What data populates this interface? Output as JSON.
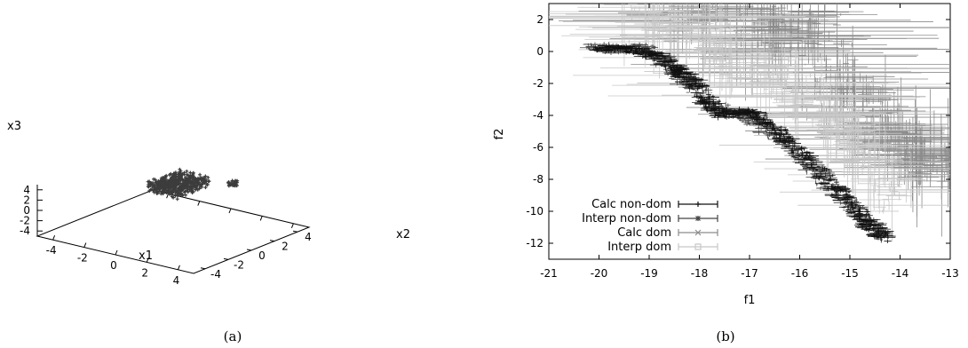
{
  "chart_data": [
    {
      "type": "scatter",
      "panel_caption": "(a)",
      "projection": "3d",
      "xlabel": "x1",
      "ylabel": "x2",
      "zlabel": "x3",
      "xlim": [
        -5,
        5
      ],
      "ylim": [
        -5,
        5
      ],
      "zlim": [
        -5,
        5
      ],
      "x_ticks": [
        "-4",
        "-2",
        "0",
        "2",
        "4"
      ],
      "y_ticks": [
        "-4",
        "-2",
        "0",
        "2",
        "4"
      ],
      "z_ticks": [
        "4",
        "2",
        "0",
        "-2",
        "-4"
      ],
      "grid": false,
      "color": "#3c3c3c",
      "clusters": [
        {
          "x": [
            -2.5,
            -0.5
          ],
          "y": [
            1.0,
            4.0
          ],
          "z": [
            0,
            2
          ]
        },
        {
          "x": [
            0.5,
            1.0
          ],
          "y": [
            4.0,
            4.5
          ],
          "z": [
            0.5,
            1.5
          ]
        }
      ]
    },
    {
      "type": "scatter",
      "panel_caption": "(b)",
      "xlabel": "f1",
      "ylabel": "f2",
      "xlim": [
        -21,
        -13
      ],
      "ylim": [
        -13,
        3
      ],
      "x_ticks": [
        "-21",
        "-20",
        "-19",
        "-18",
        "-17",
        "-16",
        "-15",
        "-14",
        "-13"
      ],
      "y_ticks": [
        "2",
        "0",
        "-2",
        "-4",
        "-6",
        "-8",
        "-10",
        "-12"
      ],
      "grid": false,
      "legend_position": "bottom-left",
      "error_bars": true,
      "series": [
        {
          "name": "Calc non-dom",
          "color": "#111111",
          "marker": "+",
          "x": [
            -20.0,
            -19.5,
            -18.8,
            -18.3,
            -17.9,
            -17.5,
            -17.0,
            -16.5,
            -16.0,
            -15.5,
            -15.0,
            -14.6,
            -14.3
          ],
          "y": [
            0.2,
            0.2,
            -0.3,
            -1.5,
            -2.9,
            -4.0,
            -3.7,
            -4.8,
            -6.3,
            -7.8,
            -9.5,
            -10.9,
            -11.7
          ]
        },
        {
          "name": "Interp non-dom",
          "color": "#444444",
          "marker": "*",
          "x": [
            -20.1,
            -19.7,
            -19.1,
            -18.6,
            -18.1,
            -17.7,
            -17.3,
            -16.8,
            -16.3,
            -15.8,
            -15.3,
            -14.8,
            -14.4
          ],
          "y": [
            0.3,
            0.1,
            0.3,
            -0.8,
            -2.2,
            -3.5,
            -3.8,
            -4.4,
            -5.6,
            -7.1,
            -8.7,
            -10.2,
            -11.4
          ]
        },
        {
          "name": "Calc dom",
          "color": "#8c8c8c",
          "marker": "x",
          "x": [
            -18.5,
            -18.0,
            -17.2,
            -16.6,
            -16.0,
            -15.4,
            -15.0,
            -14.5,
            -14.0,
            -13.5,
            -13.2
          ],
          "y": [
            2.6,
            1.2,
            2.0,
            -0.8,
            1.5,
            -2.2,
            -4.2,
            -5.5,
            -6.8,
            -7.5,
            -8.0
          ]
        },
        {
          "name": "Interp dom",
          "color": "#c8c8c8",
          "marker": "square",
          "x": [
            -19.3,
            -18.7,
            -17.9,
            -17.2,
            -16.7,
            -16.0,
            -15.5,
            -15.0,
            -14.6,
            -14.1
          ],
          "y": [
            0.9,
            1.1,
            -0.2,
            -1.7,
            -2.4,
            -3.4,
            -4.6,
            -6.6,
            -8.1,
            -10.3
          ]
        }
      ]
    }
  ]
}
